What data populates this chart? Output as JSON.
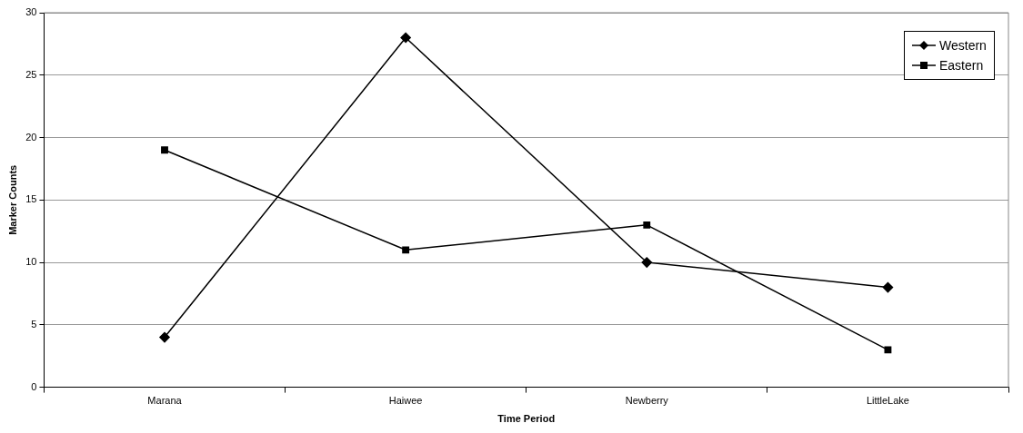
{
  "chart_data": {
    "type": "line",
    "xlabel": "Time Period",
    "ylabel": "Marker Counts",
    "categories": [
      "Marana",
      "Haiwee",
      "Newberry",
      "LittleLake"
    ],
    "series": [
      {
        "name": "Western",
        "color": "#000000",
        "marker": "diamond",
        "values": [
          4,
          28,
          10,
          8
        ]
      },
      {
        "name": "Eastern",
        "color": "#000000",
        "marker": "square",
        "values": [
          19,
          11,
          13,
          3
        ]
      }
    ],
    "ylim": [
      0,
      30
    ],
    "yticks": [
      0,
      5,
      10,
      15,
      20,
      25,
      30
    ],
    "grid": "y",
    "legend": "top right",
    "line_style": "solid"
  }
}
